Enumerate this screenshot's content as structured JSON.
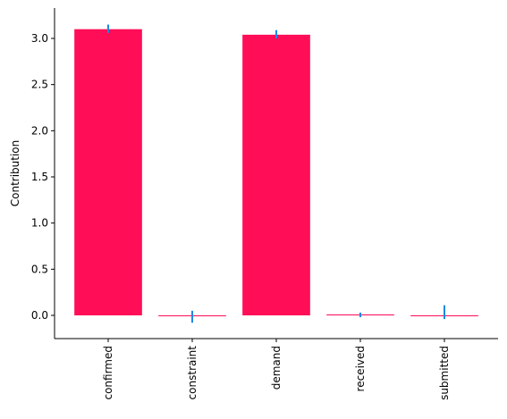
{
  "chart_data": {
    "type": "bar",
    "title": "",
    "xlabel": "",
    "ylabel": "Contribution",
    "categories": [
      "confirmed",
      "constraint",
      "demand",
      "received",
      "submitted"
    ],
    "values": [
      3.1,
      0.0,
      3.04,
      0.01,
      0.0
    ],
    "error_ranges": [
      [
        3.06,
        3.15
      ],
      [
        -0.08,
        0.05
      ],
      [
        3.0,
        3.09
      ],
      [
        -0.02,
        0.03
      ],
      [
        -0.04,
        0.11
      ]
    ],
    "ylim": [
      -0.25,
      3.31
    ],
    "yticks": [
      0.0,
      0.5,
      1.0,
      1.5,
      2.0,
      2.5,
      3.0
    ],
    "ytick_labels": [
      "0.0",
      "0.5",
      "1.0",
      "1.5",
      "2.0",
      "2.5",
      "3.0"
    ],
    "grid": false,
    "legend": "none",
    "colors": {
      "bar": "#ff0d57",
      "error": "#1e88e5",
      "axis": "#000000"
    }
  }
}
